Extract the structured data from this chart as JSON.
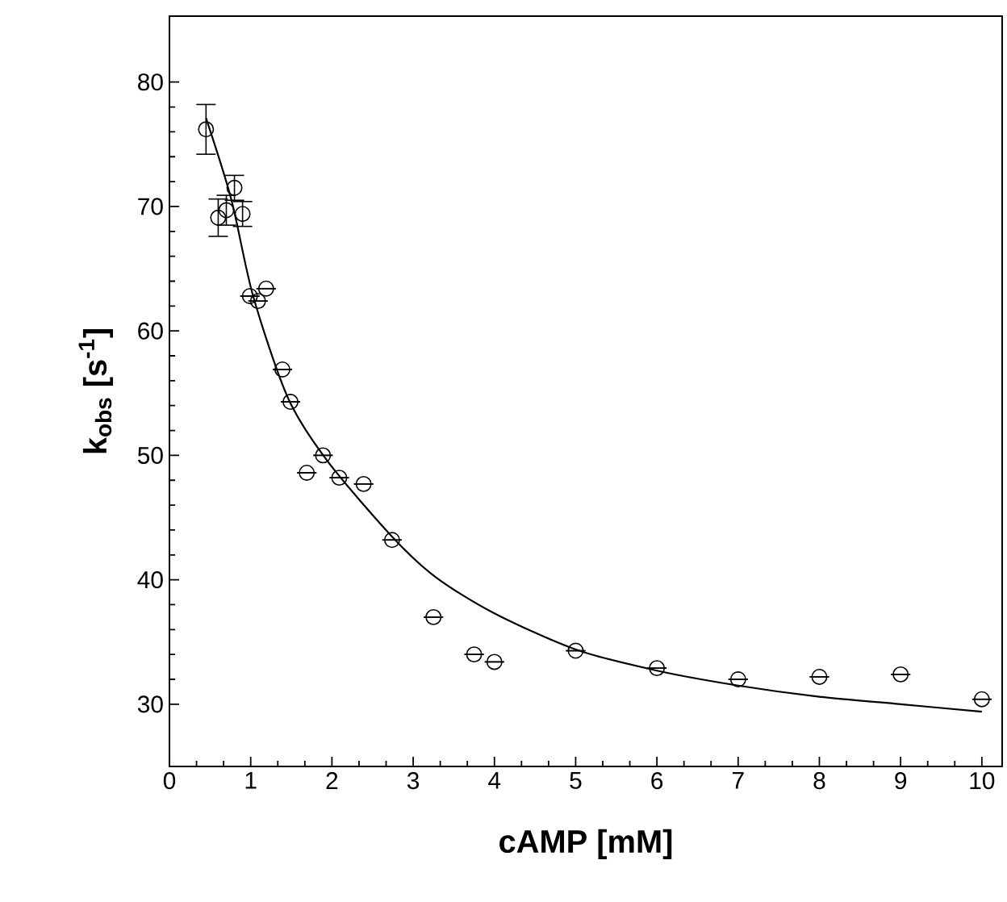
{
  "chart_data": {
    "type": "scatter",
    "xlabel": "cAMP [mM]",
    "ylabel": "**k$_{obs}$ [s$^{-1}$]**",
    "xlim": [
      0,
      10.25
    ],
    "ylim": [
      25,
      85.3
    ],
    "xticks": [
      0,
      1,
      2,
      3,
      4,
      5,
      6,
      7,
      8,
      9,
      10
    ],
    "yticks": [
      30,
      40,
      50,
      60,
      70,
      80
    ],
    "grid": false,
    "series": [
      {
        "marker": "circle",
        "color": "#000000",
        "x": [
          0.45,
          0.6,
          0.7,
          0.8,
          0.9,
          0.99,
          1.09,
          1.19,
          1.39,
          1.49,
          1.69,
          1.89,
          2.09,
          2.39,
          2.74,
          3.25,
          3.75,
          4.0,
          5,
          6,
          7,
          8,
          9,
          10
        ],
        "values": [
          76.2,
          69.1,
          69.7,
          71.5,
          69.4,
          62.8,
          62.4,
          63.4,
          56.9,
          54.3,
          48.6,
          50.0,
          48.2,
          47.7,
          43.2,
          37.0,
          34.0,
          33.4,
          34.3,
          32.9,
          32.0,
          32.2,
          32.4,
          30.4
        ],
        "errors": [
          2.0,
          1.5,
          1.2,
          1.0,
          1.0,
          null,
          null,
          null,
          null,
          null,
          null,
          null,
          null,
          null,
          null,
          null,
          null,
          null,
          null,
          null,
          null,
          null,
          null,
          null
        ]
      },
      {
        "type": "line",
        "marker": "none",
        "color": "#000000",
        "x": [
          0.45,
          0.76,
          1.03,
          1.46,
          1.95,
          2.75,
          3.28,
          4,
          5,
          6,
          7,
          8,
          9,
          10
        ],
        "values": [
          77.1,
          70.6,
          62.8,
          54.6,
          49.5,
          43.4,
          40.2,
          37.3,
          34.4,
          32.7,
          31.5,
          30.6,
          30.0,
          29.4
        ]
      }
    ]
  }
}
